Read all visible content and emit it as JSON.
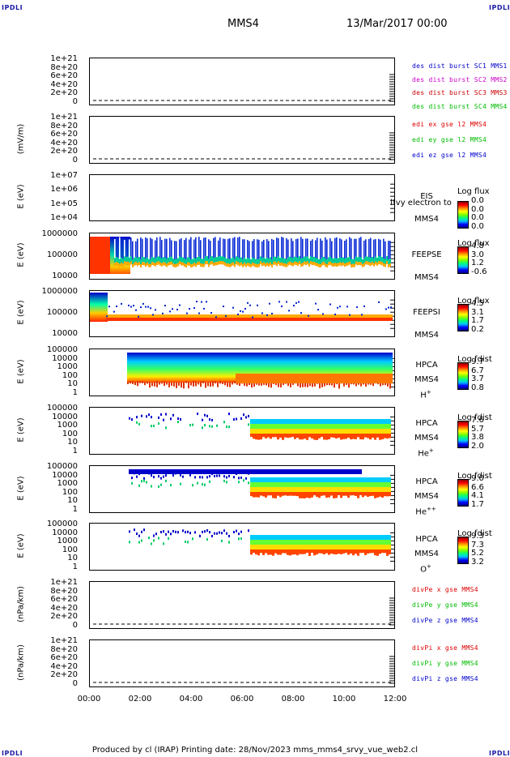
{
  "corners": {
    "tl": "IPDLI",
    "tr": "IPDLI",
    "bl": "IPDLI",
    "br": "IPDLI"
  },
  "header": {
    "spacecraft": "MMS4",
    "datetime": "13/Mar/2017 00:00"
  },
  "panels": [
    {
      "ylabel": "",
      "ticks": [
        "1e+21",
        "8e+20",
        "6e+20",
        "4e+20",
        "2e+20",
        "0"
      ],
      "legend": [
        {
          "text": "des dist burst SC1 MMS1",
          "color": "#0000cc"
        },
        {
          "text": "des dist burst SC2 MMS2",
          "color": "#cc00cc"
        },
        {
          "text": "des dist burst SC3 MMS3",
          "color": "#cc0000"
        },
        {
          "text": "des dist burst SC4 MMS4",
          "color": "#00bb00"
        }
      ]
    },
    {
      "ylabel": "(mV/m)",
      "ticks": [
        "1e+21",
        "8e+20",
        "6e+20",
        "4e+20",
        "2e+20",
        "0"
      ],
      "legend": [
        {
          "text": "edi ex gse l2 MMS4",
          "color": "#dd0000"
        },
        {
          "text": "edi ey gse l2 MMS4",
          "color": "#00bb00"
        },
        {
          "text": "edi ez gse l2 MMS4",
          "color": "#0000cc"
        }
      ]
    },
    {
      "ylabel": "E (eV)",
      "ticks": [
        "1e+07",
        "1e+06",
        "1e+05",
        "1e+04"
      ],
      "instrument": "EIS",
      "spacecraft": "MMS4",
      "overlay": "l!vy electron to",
      "colorbar": {
        "title": "Log flux",
        "labels": [
          "0.0",
          "0.0",
          "0.0",
          "0.0"
        ]
      }
    },
    {
      "ylabel": "E (eV)",
      "ticks": [
        "1000000",
        "100000",
        "10000"
      ],
      "instrument": "FEEPSE",
      "spacecraft": "MMS4",
      "colorbar": {
        "title": "Log flux",
        "labels": [
          "4.8",
          "3.0",
          "1.2",
          "-0.6"
        ]
      }
    },
    {
      "ylabel": "E (eV)",
      "ticks": [
        "1000000",
        "100000",
        "10000"
      ],
      "instrument": "FEEPSI",
      "spacecraft": "MMS4",
      "colorbar": {
        "title": "Log flux",
        "labels": [
          "4.5",
          "3.1",
          "1.7",
          "0.2"
        ]
      }
    },
    {
      "ylabel": "E (eV)",
      "ticks": [
        "100000",
        "10000",
        "1000",
        "100",
        "10",
        "1"
      ],
      "instrument": "HPCA",
      "spacecraft": "MMS4",
      "species": "H",
      "species_sup": "+",
      "colorbar": {
        "title": "Log fdist",
        "labels": [
          "9.7",
          "6.7",
          "3.7",
          "0.8"
        ]
      }
    },
    {
      "ylabel": "E (eV)",
      "ticks": [
        "100000",
        "10000",
        "1000",
        "100",
        "10",
        "1"
      ],
      "instrument": "HPCA",
      "spacecraft": "MMS4",
      "species": "He",
      "species_sup": "+",
      "colorbar": {
        "title": "Log fdist",
        "labels": [
          "7.6",
          "5.7",
          "3.8",
          "2.0"
        ]
      }
    },
    {
      "ylabel": "E (eV)",
      "ticks": [
        "100000",
        "10000",
        "1000",
        "100",
        "10",
        "1"
      ],
      "instrument": "HPCA",
      "spacecraft": "MMS4",
      "species": "He",
      "species_sup": "++",
      "colorbar": {
        "title": "Log fdist",
        "labels": [
          "9.0",
          "6.6",
          "4.1",
          "1.7"
        ]
      }
    },
    {
      "ylabel": "E (eV)",
      "ticks": [
        "100000",
        "10000",
        "1000",
        "100",
        "10",
        "1"
      ],
      "instrument": "HPCA",
      "spacecraft": "MMS4",
      "species": "O",
      "species_sup": "+",
      "colorbar": {
        "title": "Log fdist",
        "labels": [
          "9.3",
          "7.3",
          "5.2",
          "3.2"
        ]
      }
    },
    {
      "ylabel": "(nPa/km)",
      "ticks": [
        "1e+21",
        "8e+20",
        "6e+20",
        "4e+20",
        "2e+20",
        "0"
      ],
      "legend": [
        {
          "text": "divPe x gse MMS4",
          "color": "#dd0000"
        },
        {
          "text": "divPe y gse MMS4",
          "color": "#00bb00"
        },
        {
          "text": "divPe z gse MMS4",
          "color": "#0000cc"
        }
      ]
    },
    {
      "ylabel": "(nPa/km)",
      "ticks": [
        "1e+21",
        "8e+20",
        "6e+20",
        "4e+20",
        "2e+20",
        "0"
      ],
      "legend": [
        {
          "text": "divPi x gse MMS4",
          "color": "#dd0000"
        },
        {
          "text": "divPi y gse MMS4",
          "color": "#00bb00"
        },
        {
          "text": "divPi z gse MMS4",
          "color": "#0000cc"
        }
      ]
    }
  ],
  "xaxis": {
    "ticks": [
      "00:00",
      "02:00",
      "04:00",
      "06:00",
      "08:00",
      "10:00",
      "12:00"
    ]
  },
  "footer": {
    "text": "Produced by cl (IRAP)   Printing date: 28/Nov/2023   mms_mms4_srvy_vue_web2.cl"
  },
  "chart_data": {
    "type": "heatmap",
    "title": "MMS4 13/Mar/2017 00:00",
    "xlabel": "",
    "x": [
      "00:00",
      "02:00",
      "04:00",
      "06:00",
      "08:00",
      "10:00",
      "12:00"
    ],
    "xlim": [
      "00:00",
      "12:00"
    ],
    "series": [
      {
        "name": "FEEPSE",
        "ylabel": "E (eV)",
        "ylim": [
          10000,
          1000000
        ],
        "scale": "log",
        "colorbar": "Log flux",
        "crange": [
          -0.6,
          4.8
        ]
      },
      {
        "name": "FEEPSI",
        "ylabel": "E (eV)",
        "ylim": [
          10000,
          1000000
        ],
        "scale": "log",
        "colorbar": "Log flux",
        "crange": [
          0.2,
          4.5
        ]
      },
      {
        "name": "HPCA H+",
        "ylabel": "E (eV)",
        "ylim": [
          1,
          100000
        ],
        "scale": "log",
        "colorbar": "Log fdist",
        "crange": [
          0.8,
          9.7
        ]
      },
      {
        "name": "HPCA He+",
        "ylabel": "E (eV)",
        "ylim": [
          1,
          100000
        ],
        "scale": "log",
        "colorbar": "Log fdist",
        "crange": [
          2.0,
          7.6
        ]
      },
      {
        "name": "HPCA He++",
        "ylabel": "E (eV)",
        "ylim": [
          1,
          100000
        ],
        "scale": "log",
        "colorbar": "Log fdist",
        "crange": [
          1.7,
          9.0
        ]
      },
      {
        "name": "HPCA O+",
        "ylabel": "E (eV)",
        "ylim": [
          1,
          100000
        ],
        "scale": "log",
        "colorbar": "Log fdist",
        "crange": [
          3.2,
          9.3
        ]
      }
    ]
  }
}
